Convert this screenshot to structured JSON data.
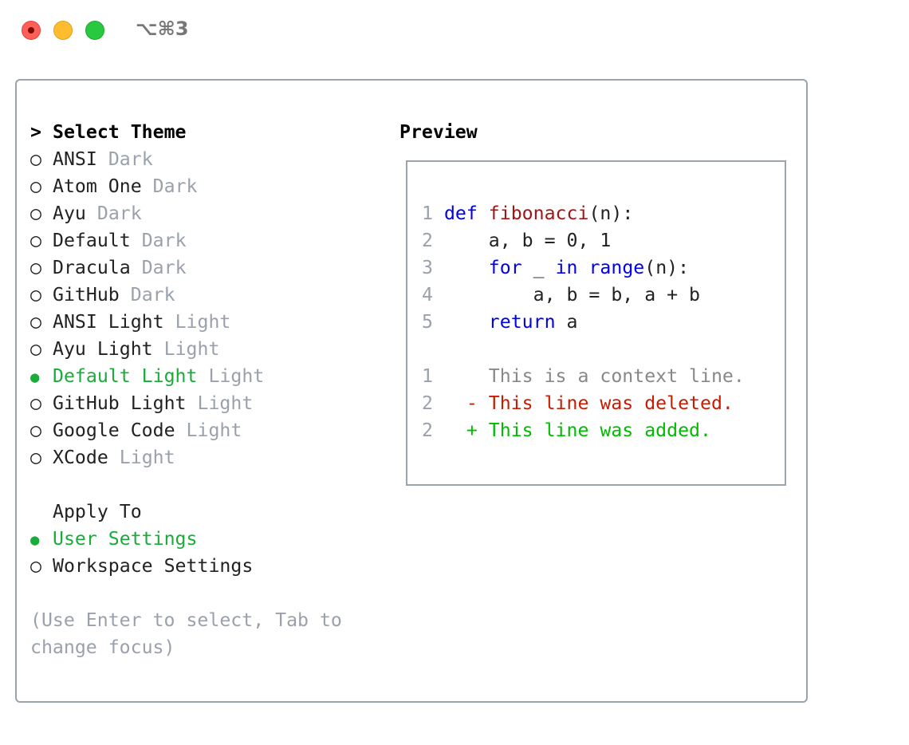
{
  "window": {
    "title": "⌥⌘3",
    "controls": {
      "close": "#ff5f57",
      "minimize": "#febc2e",
      "zoom": "#28c840"
    }
  },
  "themes": {
    "heading_prefix": ">",
    "heading": "Select Theme",
    "items": [
      {
        "name": "ANSI",
        "type": "Dark",
        "selected": false
      },
      {
        "name": "Atom One",
        "type": "Dark",
        "selected": false
      },
      {
        "name": "Ayu",
        "type": "Dark",
        "selected": false
      },
      {
        "name": "Default",
        "type": "Dark",
        "selected": false
      },
      {
        "name": "Dracula",
        "type": "Dark",
        "selected": false
      },
      {
        "name": "GitHub",
        "type": "Dark",
        "selected": false
      },
      {
        "name": "ANSI Light",
        "type": "Light",
        "selected": false
      },
      {
        "name": "Ayu Light",
        "type": "Light",
        "selected": false
      },
      {
        "name": "Default Light",
        "type": "Light",
        "selected": true
      },
      {
        "name": "GitHub Light",
        "type": "Light",
        "selected": false
      },
      {
        "name": "Google Code",
        "type": "Light",
        "selected": false
      },
      {
        "name": "XCode",
        "type": "Light",
        "selected": false
      }
    ]
  },
  "apply_to": {
    "heading": "Apply To",
    "items": [
      {
        "name": "User Settings",
        "selected": true
      },
      {
        "name": "Workspace Settings",
        "selected": false
      }
    ]
  },
  "hint": [
    "(Use Enter to select, Tab to",
    "change focus)"
  ],
  "preview": {
    "heading": "Preview",
    "code": [
      {
        "n": "1",
        "parts": [
          [
            "kw",
            "def"
          ],
          [
            "",
            ""
          ],
          [
            "fn",
            " fibonacci"
          ],
          [
            "",
            "(n):"
          ]
        ]
      },
      {
        "n": "2",
        "parts": [
          [
            "",
            "    a, b = 0, 1"
          ]
        ]
      },
      {
        "n": "3",
        "parts": [
          [
            "",
            "    "
          ],
          [
            "kw",
            "for"
          ],
          [
            "",
            " _ "
          ],
          [
            "kw",
            "in"
          ],
          [
            "",
            " "
          ],
          [
            "kw",
            "range"
          ],
          [
            "",
            "(n):"
          ]
        ]
      },
      {
        "n": "4",
        "parts": [
          [
            "",
            "        a, b = b, a + b"
          ]
        ]
      },
      {
        "n": "5",
        "parts": [
          [
            "",
            "    "
          ],
          [
            "kw",
            "return"
          ],
          [
            "",
            " a"
          ]
        ]
      }
    ],
    "diff": [
      {
        "n": "1",
        "cls": "ctx",
        "text": "     This is a context line."
      },
      {
        "n": "2",
        "cls": "del",
        "text": "   - This line was deleted."
      },
      {
        "n": "2",
        "cls": "add",
        "text": "   + This line was added."
      }
    ]
  },
  "colors": {
    "selected": "#1aab3a",
    "muted": "#9aa1ad",
    "keyword": "#0000ee",
    "function": "#a31515",
    "deleted": "#c91b00",
    "added": "#00bc00"
  }
}
